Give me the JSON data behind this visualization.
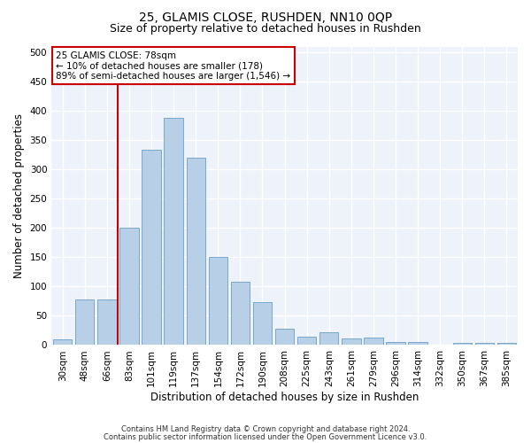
{
  "title1": "25, GLAMIS CLOSE, RUSHDEN, NN10 0QP",
  "title2": "Size of property relative to detached houses in Rushden",
  "xlabel": "Distribution of detached houses by size in Rushden",
  "ylabel": "Number of detached properties",
  "categories": [
    "30sqm",
    "48sqm",
    "66sqm",
    "83sqm",
    "101sqm",
    "119sqm",
    "137sqm",
    "154sqm",
    "172sqm",
    "190sqm",
    "208sqm",
    "225sqm",
    "243sqm",
    "261sqm",
    "279sqm",
    "296sqm",
    "314sqm",
    "332sqm",
    "350sqm",
    "367sqm",
    "385sqm"
  ],
  "values": [
    10,
    78,
    78,
    200,
    333,
    388,
    320,
    150,
    108,
    73,
    28,
    15,
    22,
    12,
    13,
    5,
    5,
    0,
    3,
    3,
    3
  ],
  "bar_color": "#b8cfe8",
  "bar_edge_color": "#6a9fc8",
  "vline_color": "#cc0000",
  "annotation_text": "25 GLAMIS CLOSE: 78sqm\n← 10% of detached houses are smaller (178)\n89% of semi-detached houses are larger (1,546) →",
  "annotation_box_color": "#ffffff",
  "annotation_box_edge_color": "#cc0000",
  "ylim": [
    0,
    510
  ],
  "yticks": [
    0,
    50,
    100,
    150,
    200,
    250,
    300,
    350,
    400,
    450,
    500
  ],
  "footer1": "Contains HM Land Registry data © Crown copyright and database right 2024.",
  "footer2": "Contains public sector information licensed under the Open Government Licence v3.0.",
  "bg_color": "#eef2fa",
  "grid_color": "#ffffff",
  "title1_fontsize": 10,
  "title2_fontsize": 9,
  "tick_fontsize": 7.5,
  "ylabel_fontsize": 8.5,
  "xlabel_fontsize": 8.5,
  "footer_fontsize": 6.0,
  "annotation_fontsize": 7.5
}
